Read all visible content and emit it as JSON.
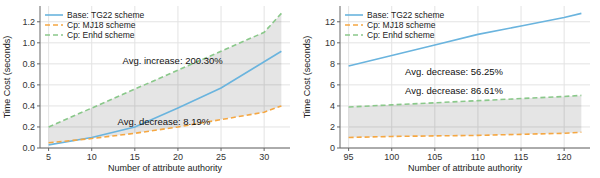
{
  "chart_data": [
    {
      "type": "line",
      "x": [
        5,
        10,
        15,
        20,
        25,
        30,
        32
      ],
      "series": [
        {
          "name": "Base: TG22 scheme",
          "color": "#6ab4de",
          "line_style": "solid",
          "values": [
            0.03,
            0.1,
            0.2,
            0.38,
            0.57,
            0.82,
            0.92
          ]
        },
        {
          "name": "Cp: MJ18 scheme",
          "color": "#f5a742",
          "line_style": "dashed",
          "values": [
            0.05,
            0.09,
            0.14,
            0.2,
            0.27,
            0.34,
            0.4
          ]
        },
        {
          "name": "Cp: Enhd scheme",
          "color": "#8ac88a",
          "line_style": "dashed",
          "values": [
            0.2,
            0.38,
            0.56,
            0.74,
            0.92,
            1.1,
            1.28
          ]
        }
      ],
      "xlim": [
        4,
        33
      ],
      "ylim": [
        0,
        1.35
      ],
      "xticks": [
        5,
        10,
        15,
        20,
        25,
        30
      ],
      "yticks": [
        {
          "value": 0,
          "label": "0.0"
        },
        0.2,
        0.4,
        0.6,
        0.8,
        {
          "value": 1,
          "label": "1.0"
        },
        1.2
      ],
      "xlabel": "Number of attribute authority",
      "ylabel": "Time Cost (seconds)",
      "annotations": [
        "Avg. increase: 200.30%",
        "Avg. decrease: 8.19%"
      ],
      "grid": true,
      "legend": "upper left"
    },
    {
      "type": "line",
      "x": [
        95,
        100,
        105,
        110,
        115,
        120,
        122
      ],
      "series": [
        {
          "name": "Base: TG22 scheme",
          "color": "#6ab4de",
          "line_style": "solid",
          "values": [
            7.8,
            8.8,
            9.8,
            10.8,
            11.6,
            12.4,
            12.8
          ]
        },
        {
          "name": "Cp: MJ18 scheme",
          "color": "#f5a742",
          "line_style": "dashed",
          "values": [
            1.0,
            1.1,
            1.15,
            1.2,
            1.3,
            1.4,
            1.5
          ]
        },
        {
          "name": "Cp: Enhd scheme",
          "color": "#8ac88a",
          "line_style": "dashed",
          "values": [
            3.9,
            4.1,
            4.3,
            4.5,
            4.7,
            4.9,
            5.0
          ]
        }
      ],
      "xlim": [
        94,
        123
      ],
      "ylim": [
        0,
        13.5
      ],
      "xticks": [
        95,
        100,
        105,
        110,
        115,
        120
      ],
      "yticks": [
        0,
        2,
        4,
        6,
        8,
        10,
        12
      ],
      "xlabel": "Number of attribute authority",
      "ylabel": "Time Cost (seconds)",
      "annotations": [
        "Avg. decrease: 56.25%",
        "Avg. decrease: 86.61%"
      ],
      "grid": true,
      "legend": "upper left"
    }
  ]
}
